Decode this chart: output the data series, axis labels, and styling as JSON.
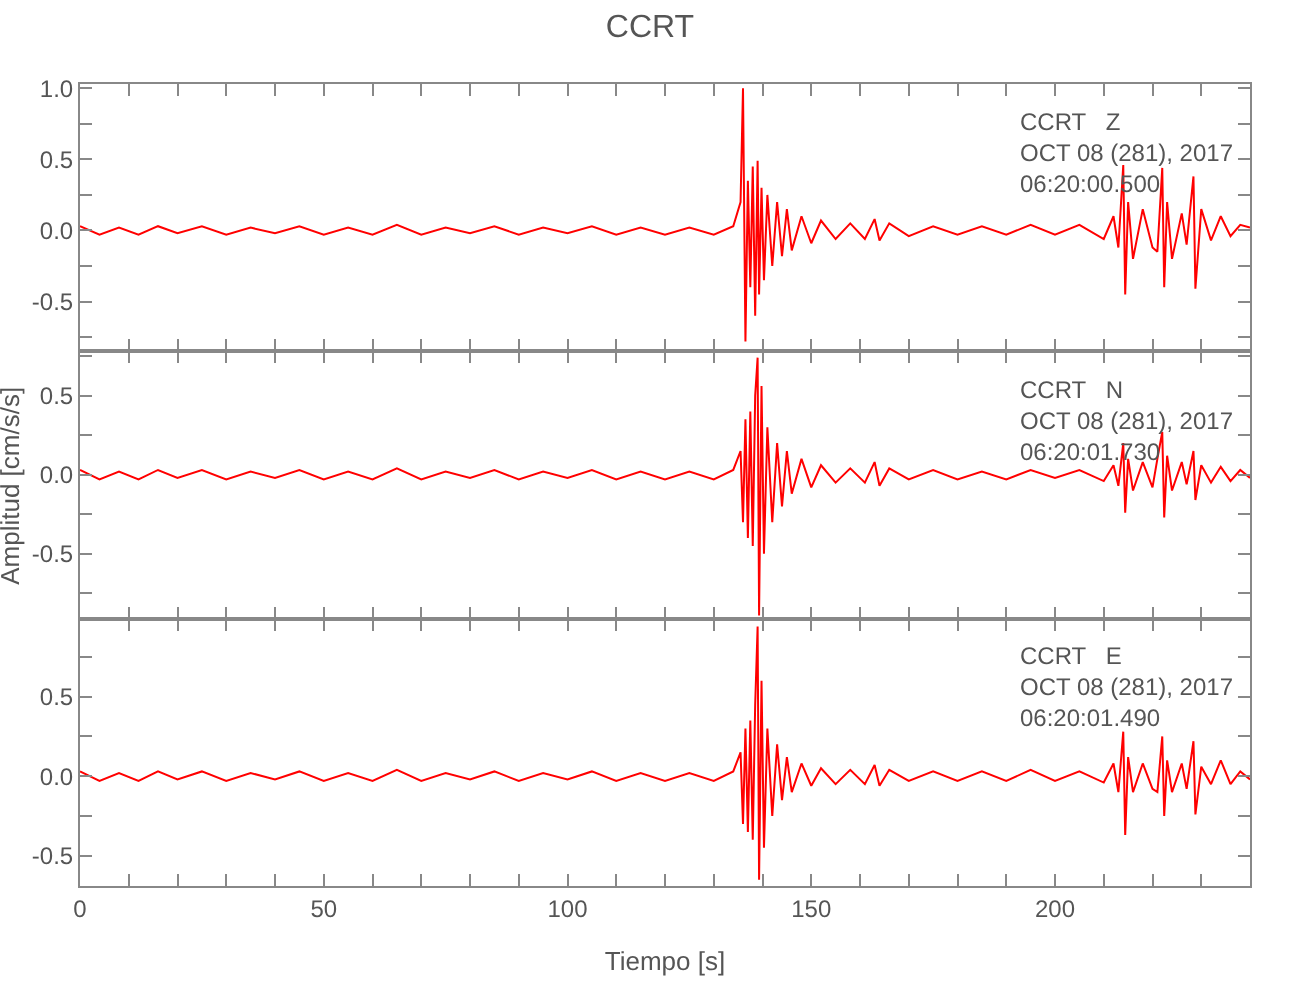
{
  "chart_data": [
    {
      "type": "line",
      "title": "CCRT",
      "annotations": [
        "CCRT   Z\nOCT 08 (281), 2017\n06:20:00.500"
      ],
      "tick_labels": "y",
      "xlim": [
        0,
        240
      ],
      "ylim": [
        -0.85,
        1.03
      ],
      "xticks": [
        {
          "value": 0,
          "label": null
        },
        {
          "value": 10,
          "label": null
        },
        {
          "value": 20,
          "label": null
        },
        {
          "value": 30,
          "label": null
        },
        {
          "value": 40,
          "label": null
        },
        {
          "value": 50,
          "label": null
        },
        {
          "value": 60,
          "label": null
        },
        {
          "value": 70,
          "label": null
        },
        {
          "value": 80,
          "label": null
        },
        {
          "value": 90,
          "label": null
        },
        {
          "value": 100,
          "label": null
        },
        {
          "value": 110,
          "label": null
        },
        {
          "value": 120,
          "label": null
        },
        {
          "value": 130,
          "label": null
        },
        {
          "value": 140,
          "label": null
        },
        {
          "value": 150,
          "label": null
        },
        {
          "value": 160,
          "label": null
        },
        {
          "value": 170,
          "label": null
        },
        {
          "value": 180,
          "label": null
        },
        {
          "value": 190,
          "label": null
        },
        {
          "value": 200,
          "label": null
        },
        {
          "value": 210,
          "label": null
        },
        {
          "value": 220,
          "label": null
        },
        {
          "value": 230,
          "label": null
        },
        {
          "value": 240,
          "label": null
        }
      ],
      "yticks": [
        {
          "value": -0.75,
          "label": null
        },
        {
          "value": -0.5,
          "label": "-0.5"
        },
        {
          "value": -0.25,
          "label": null
        },
        {
          "value": 0,
          "label": "0.0"
        },
        {
          "value": 0.25,
          "label": null
        },
        {
          "value": 0.5,
          "label": "0.5"
        },
        {
          "value": 0.75,
          "label": null
        },
        {
          "value": 1.0,
          "label": "1.0"
        }
      ],
      "x": [
        0,
        4,
        8,
        12,
        16,
        20,
        25,
        30,
        35,
        40,
        45,
        50,
        55,
        60,
        65,
        70,
        75,
        80,
        85,
        90,
        95,
        100,
        105,
        110,
        115,
        120,
        125,
        130,
        134,
        135.5,
        136,
        136.5,
        137,
        137.5,
        138,
        138.5,
        139,
        139.3,
        139.8,
        140.3,
        141,
        142,
        143,
        144,
        145,
        146,
        148,
        150,
        152,
        155,
        158,
        161,
        163,
        164,
        166,
        170,
        175,
        180,
        185,
        190,
        195,
        200,
        205,
        210,
        212,
        213,
        214,
        214.4,
        215,
        216,
        218,
        220,
        221,
        222,
        222.4,
        223,
        224,
        226,
        227,
        228.4,
        228.8,
        230,
        232,
        234,
        236,
        238,
        240
      ],
      "series": [
        {
          "color": "#ff0000",
          "values": [
            0.03,
            -0.03,
            0.02,
            -0.03,
            0.03,
            -0.02,
            0.03,
            -0.03,
            0.02,
            -0.02,
            0.03,
            -0.03,
            0.02,
            -0.03,
            0.04,
            -0.03,
            0.02,
            -0.02,
            0.03,
            -0.03,
            0.02,
            -0.02,
            0.03,
            -0.03,
            0.02,
            -0.03,
            0.02,
            -0.03,
            0.03,
            0.2,
            1.0,
            -0.78,
            0.35,
            -0.4,
            0.45,
            -0.6,
            0.49,
            -0.45,
            0.3,
            -0.35,
            0.25,
            -0.25,
            0.2,
            -0.18,
            0.15,
            -0.14,
            0.1,
            -0.09,
            0.07,
            -0.06,
            0.05,
            -0.06,
            0.08,
            -0.07,
            0.05,
            -0.04,
            0.03,
            -0.03,
            0.03,
            -0.03,
            0.04,
            -0.03,
            0.04,
            -0.06,
            0.1,
            -0.12,
            0.46,
            -0.45,
            0.2,
            -0.2,
            0.15,
            -0.12,
            -0.15,
            0.44,
            -0.4,
            0.2,
            -0.2,
            0.12,
            -0.1,
            0.38,
            -0.41,
            0.15,
            -0.07,
            0.1,
            -0.04,
            0.04,
            0.02
          ]
        }
      ]
    },
    {
      "type": "line",
      "ylabel": "Amplitud [cm/s/s]",
      "annotations": [
        "CCRT   N\nOCT 08 (281), 2017\n06:20:01.730"
      ],
      "tick_labels": "y",
      "xlim": [
        0,
        240
      ],
      "ylim": [
        -0.91,
        0.78
      ],
      "xticks": [
        {
          "value": 0,
          "label": null
        },
        {
          "value": 10,
          "label": null
        },
        {
          "value": 20,
          "label": null
        },
        {
          "value": 30,
          "label": null
        },
        {
          "value": 40,
          "label": null
        },
        {
          "value": 50,
          "label": null
        },
        {
          "value": 60,
          "label": null
        },
        {
          "value": 70,
          "label": null
        },
        {
          "value": 80,
          "label": null
        },
        {
          "value": 90,
          "label": null
        },
        {
          "value": 100,
          "label": null
        },
        {
          "value": 110,
          "label": null
        },
        {
          "value": 120,
          "label": null
        },
        {
          "value": 130,
          "label": null
        },
        {
          "value": 140,
          "label": null
        },
        {
          "value": 150,
          "label": null
        },
        {
          "value": 160,
          "label": null
        },
        {
          "value": 170,
          "label": null
        },
        {
          "value": 180,
          "label": null
        },
        {
          "value": 190,
          "label": null
        },
        {
          "value": 200,
          "label": null
        },
        {
          "value": 210,
          "label": null
        },
        {
          "value": 220,
          "label": null
        },
        {
          "value": 230,
          "label": null
        },
        {
          "value": 240,
          "label": null
        }
      ],
      "yticks": [
        {
          "value": -0.75,
          "label": null
        },
        {
          "value": -0.5,
          "label": "-0.5"
        },
        {
          "value": -0.25,
          "label": null
        },
        {
          "value": 0,
          "label": "0.0"
        },
        {
          "value": 0.25,
          "label": null
        },
        {
          "value": 0.5,
          "label": "0.5"
        },
        {
          "value": 0.75,
          "label": null
        }
      ],
      "x": [
        0,
        4,
        8,
        12,
        16,
        20,
        25,
        30,
        35,
        40,
        45,
        50,
        55,
        60,
        65,
        70,
        75,
        80,
        85,
        90,
        95,
        100,
        105,
        110,
        115,
        120,
        125,
        130,
        134,
        135.5,
        136,
        136.5,
        137,
        137.5,
        138,
        138.5,
        139,
        139.3,
        139.8,
        140.3,
        141,
        142,
        143,
        144,
        145,
        146,
        148,
        150,
        152,
        155,
        158,
        161,
        163,
        164,
        166,
        170,
        175,
        180,
        185,
        190,
        195,
        200,
        205,
        210,
        212,
        213,
        214,
        214.4,
        215,
        216,
        218,
        220,
        221,
        222,
        222.4,
        223,
        224,
        226,
        227,
        228.4,
        228.8,
        230,
        232,
        234,
        236,
        238,
        240
      ],
      "series": [
        {
          "color": "#ff0000",
          "values": [
            0.03,
            -0.03,
            0.02,
            -0.03,
            0.03,
            -0.02,
            0.03,
            -0.03,
            0.02,
            -0.02,
            0.03,
            -0.03,
            0.02,
            -0.03,
            0.04,
            -0.03,
            0.02,
            -0.02,
            0.03,
            -0.03,
            0.02,
            -0.02,
            0.03,
            -0.03,
            0.02,
            -0.03,
            0.02,
            -0.03,
            0.03,
            0.15,
            -0.3,
            0.35,
            -0.4,
            0.4,
            -0.45,
            0.5,
            0.74,
            -0.89,
            0.56,
            -0.5,
            0.3,
            -0.3,
            0.2,
            -0.2,
            0.15,
            -0.12,
            0.1,
            -0.08,
            0.06,
            -0.05,
            0.04,
            -0.05,
            0.08,
            -0.07,
            0.04,
            -0.03,
            0.03,
            -0.03,
            0.02,
            -0.03,
            0.03,
            -0.02,
            0.03,
            -0.04,
            0.06,
            -0.07,
            0.2,
            -0.24,
            0.1,
            -0.1,
            0.08,
            -0.08,
            0.1,
            0.27,
            -0.27,
            0.12,
            -0.1,
            0.08,
            -0.06,
            0.15,
            -0.16,
            0.06,
            -0.05,
            0.05,
            -0.04,
            0.03,
            -0.02
          ]
        }
      ]
    },
    {
      "type": "line",
      "xlabel": "Tiempo [s]",
      "annotations": [
        "CCRT   E\nOCT 08 (281), 2017\n06:20:01.490"
      ],
      "xlim": [
        0,
        240
      ],
      "ylim": [
        -0.69,
        0.99
      ],
      "xticks": [
        {
          "value": 0,
          "label": "0"
        },
        {
          "value": 10,
          "label": null
        },
        {
          "value": 20,
          "label": null
        },
        {
          "value": 30,
          "label": null
        },
        {
          "value": 40,
          "label": null
        },
        {
          "value": 50,
          "label": "50"
        },
        {
          "value": 60,
          "label": null
        },
        {
          "value": 70,
          "label": null
        },
        {
          "value": 80,
          "label": null
        },
        {
          "value": 90,
          "label": null
        },
        {
          "value": 100,
          "label": "100"
        },
        {
          "value": 110,
          "label": null
        },
        {
          "value": 120,
          "label": null
        },
        {
          "value": 130,
          "label": null
        },
        {
          "value": 140,
          "label": null
        },
        {
          "value": 150,
          "label": "150"
        },
        {
          "value": 160,
          "label": null
        },
        {
          "value": 170,
          "label": null
        },
        {
          "value": 180,
          "label": null
        },
        {
          "value": 190,
          "label": null
        },
        {
          "value": 200,
          "label": "200"
        },
        {
          "value": 210,
          "label": null
        },
        {
          "value": 220,
          "label": null
        },
        {
          "value": 230,
          "label": null
        },
        {
          "value": 240,
          "label": null
        }
      ],
      "yticks": [
        {
          "value": -0.5,
          "label": "-0.5"
        },
        {
          "value": -0.25,
          "label": null
        },
        {
          "value": 0,
          "label": "0.0"
        },
        {
          "value": 0.25,
          "label": null
        },
        {
          "value": 0.5,
          "label": "0.5"
        },
        {
          "value": 0.75,
          "label": null
        }
      ],
      "x": [
        0,
        4,
        8,
        12,
        16,
        20,
        25,
        30,
        35,
        40,
        45,
        50,
        55,
        60,
        65,
        70,
        75,
        80,
        85,
        90,
        95,
        100,
        105,
        110,
        115,
        120,
        125,
        130,
        134,
        135.5,
        136,
        136.5,
        137,
        137.5,
        138,
        138.5,
        139,
        139.3,
        139.8,
        140.3,
        141,
        142,
        143,
        144,
        145,
        146,
        148,
        150,
        152,
        155,
        158,
        161,
        163,
        164,
        166,
        170,
        175,
        180,
        185,
        190,
        195,
        200,
        205,
        210,
        212,
        213,
        214,
        214.4,
        215,
        216,
        218,
        220,
        221,
        222,
        222.4,
        223,
        224,
        226,
        227,
        228.4,
        228.8,
        230,
        232,
        234,
        236,
        238,
        240
      ],
      "series": [
        {
          "color": "#ff0000",
          "values": [
            0.03,
            -0.03,
            0.02,
            -0.03,
            0.03,
            -0.02,
            0.03,
            -0.03,
            0.02,
            -0.02,
            0.03,
            -0.03,
            0.02,
            -0.03,
            0.04,
            -0.03,
            0.02,
            -0.02,
            0.03,
            -0.03,
            0.02,
            -0.02,
            0.03,
            -0.03,
            0.02,
            -0.03,
            0.02,
            -0.03,
            0.03,
            0.15,
            -0.3,
            0.3,
            -0.35,
            0.35,
            -0.4,
            0.45,
            0.94,
            -0.65,
            0.6,
            -0.45,
            0.3,
            -0.25,
            0.2,
            -0.15,
            0.12,
            -0.1,
            0.08,
            -0.06,
            0.05,
            -0.05,
            0.04,
            -0.05,
            0.07,
            -0.06,
            0.04,
            -0.03,
            0.03,
            -0.03,
            0.03,
            -0.03,
            0.04,
            -0.03,
            0.03,
            -0.04,
            0.08,
            -0.1,
            0.28,
            -0.37,
            0.12,
            -0.1,
            0.08,
            -0.08,
            -0.1,
            0.25,
            -0.25,
            0.1,
            -0.1,
            0.08,
            -0.08,
            0.22,
            -0.24,
            0.06,
            -0.05,
            0.1,
            -0.05,
            0.03,
            -0.02
          ]
        }
      ]
    }
  ]
}
